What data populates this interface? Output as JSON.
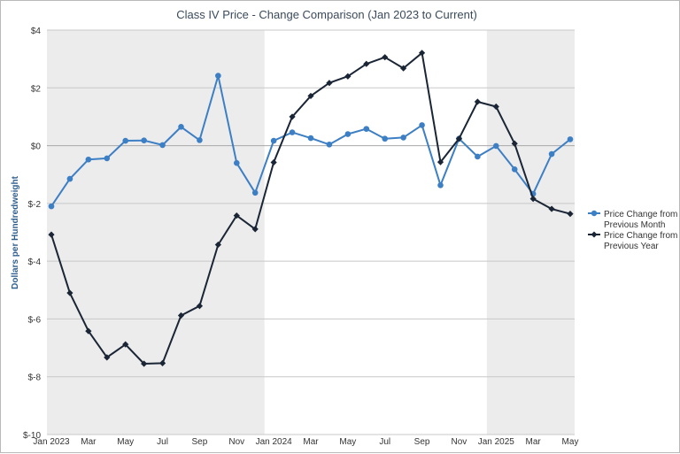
{
  "chart_data": {
    "type": "line",
    "title": "Class IV Price - Change Comparison (Jan 2023 to Current)",
    "xlabel": "",
    "ylabel": "Dollars per Hundredweight",
    "ylim": [
      -10,
      4
    ],
    "y_ticks": [
      "$4",
      "$2",
      "$0",
      "$-2",
      "$-4",
      "$-6",
      "$-8",
      "$-10"
    ],
    "x_tick_labels": [
      "Jan 2023",
      "Mar",
      "May",
      "Jul",
      "Sep",
      "Nov",
      "Jan 2024",
      "Mar",
      "May",
      "Jul",
      "Sep",
      "Nov",
      "Jan 2025",
      "Mar",
      "May"
    ],
    "x_tick_months": [
      0,
      2,
      4,
      6,
      8,
      10,
      12,
      14,
      16,
      18,
      20,
      22,
      24,
      26,
      28
    ],
    "x": [
      "Jan 2023",
      "Feb 2023",
      "Mar 2023",
      "Apr 2023",
      "May 2023",
      "Jun 2023",
      "Jul 2023",
      "Aug 2023",
      "Sep 2023",
      "Oct 2023",
      "Nov 2023",
      "Dec 2023",
      "Jan 2024",
      "Feb 2024",
      "Mar 2024",
      "Apr 2024",
      "May 2024",
      "Jun 2024",
      "Jul 2024",
      "Aug 2024",
      "Sep 2024",
      "Oct 2024",
      "Nov 2024",
      "Dec 2024",
      "Jan 2025",
      "Feb 2025",
      "Mar 2025",
      "Apr 2025",
      "May 2025"
    ],
    "shaded_years": [
      "2023",
      "2025"
    ],
    "grid": true,
    "legend_position": "right",
    "series": [
      {
        "name": "Price Change from Previous Month",
        "color": "#3d7fc4",
        "marker": "circle",
        "values": [
          -2.1,
          -1.15,
          -0.48,
          -0.44,
          0.17,
          0.18,
          0.02,
          0.65,
          0.19,
          2.42,
          -0.6,
          -1.63,
          0.17,
          0.46,
          0.26,
          0.04,
          0.4,
          0.58,
          0.24,
          0.28,
          0.71,
          -1.37,
          0.24,
          -0.38,
          -0.01,
          -0.82,
          -1.67,
          -0.29,
          0.22
        ]
      },
      {
        "name": "Price Change from Previous Year",
        "color": "#1a2535",
        "marker": "diamond",
        "values": [
          -3.08,
          -5.1,
          -6.42,
          -7.33,
          -6.88,
          -7.55,
          -7.53,
          -5.88,
          -5.55,
          -3.43,
          -2.42,
          -2.89,
          -0.58,
          1.0,
          1.72,
          2.17,
          2.4,
          2.83,
          3.06,
          2.68,
          3.21,
          -0.57,
          0.24,
          1.52,
          1.35,
          0.07,
          -1.84,
          -2.19,
          -2.36
        ]
      }
    ]
  }
}
